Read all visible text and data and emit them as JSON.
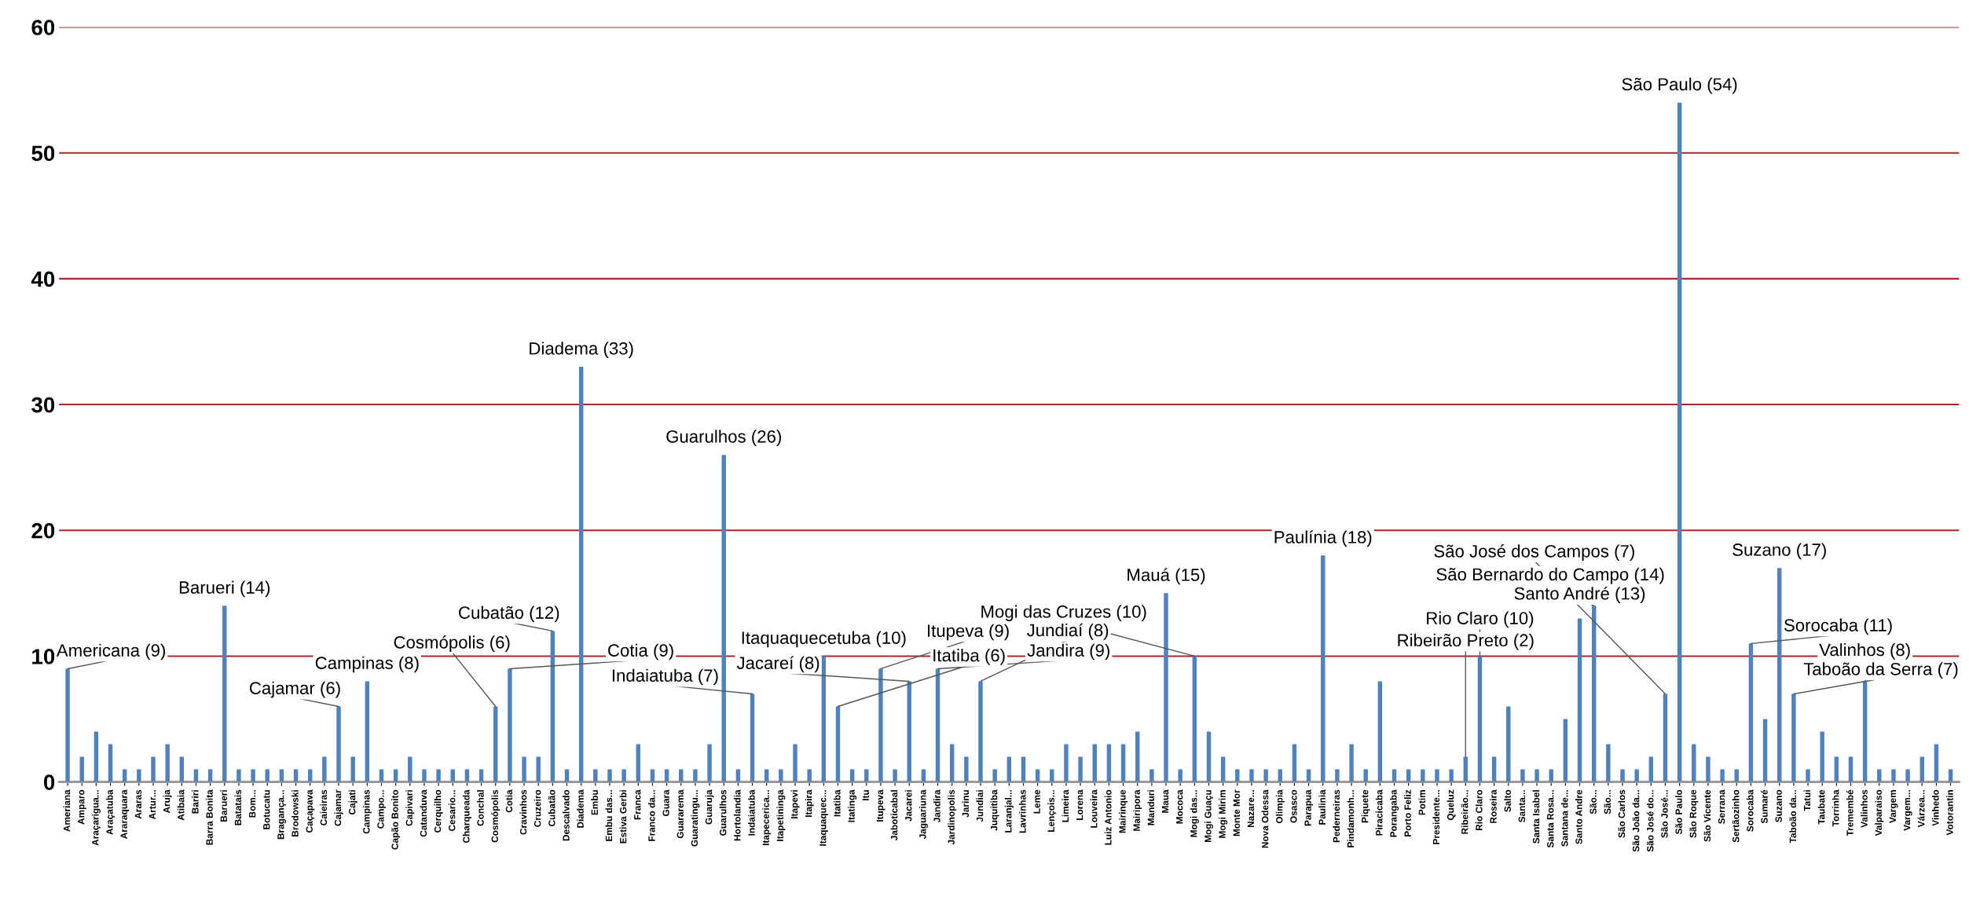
{
  "chart_data": {
    "type": "bar",
    "color": "#4f81bd",
    "ylim": [
      0,
      60
    ],
    "yticks": [
      0,
      10,
      20,
      30,
      40,
      50,
      60
    ],
    "grid": "y",
    "categories": [
      "Ameriana",
      "Amparo",
      "Araçarigua...",
      "Araçatuba",
      "Araraquara",
      "Araras",
      "Artur...",
      "Aruja",
      "Atibaia",
      "Bariri",
      "Barra Bonita",
      "Barueri",
      "Batatais",
      "Bom...",
      "Botucatu",
      "Bragança...",
      "Brodowski",
      "Caçapava",
      "Caieiras",
      "Cajamar",
      "Cajati",
      "Campinas",
      "Campo...",
      "Capão Bonito",
      "Capivari",
      "Catanduva",
      "Cerquilho",
      "Cesario...",
      "Charqueada",
      "Conchal",
      "Cosmópolis",
      "Cotia",
      "Cravinhos",
      "Cruzeiro",
      "Cubatão",
      "Descalvado",
      "Diadema",
      "Embu",
      "Embu das...",
      "Estiva Gerbi",
      "Franca",
      "Franco da...",
      "Guara",
      "Guararema",
      "Guaratingu...",
      "Guaruja",
      "Guarulhos",
      "Hortolandia",
      "Indaiatuba",
      "Itapecerica...",
      "Itapetininga",
      "Itapevi",
      "Itapira",
      "Itaquaquec...",
      "Itatiba",
      "Itatinga",
      "Itu",
      "Itupeva",
      "Jaboticabal",
      "Jacarei",
      "Jaguariuna",
      "Jandira",
      "Jardinopolis",
      "Jarinu",
      "Jundiai",
      "Juquitiba",
      "Laranjal...",
      "Lavrinhas",
      "Leme",
      "Lençois...",
      "Limeira",
      "Lorena",
      "Louveira",
      "Luiz Antonio",
      "Mairinque",
      "Mairipora",
      "Manduri",
      "Maua",
      "Mococa",
      "Mogi das...",
      "Mogi Guaçu",
      "Mogi Mirim",
      "Monte Mor",
      "Nazare...",
      "Nova Odessa",
      "Olimpia",
      "Osasco",
      "Parapua",
      "Paulinia",
      "Pederneiras",
      "Pindamonh...",
      "Piquete",
      "Piracicaba",
      "Porangaba",
      "Porto Feliz",
      "Potim",
      "Presidente...",
      "Queluz",
      "Ribeirão...",
      "Rio Claro",
      "Roseira",
      "Salto",
      "Santa...",
      "Santa Isabel",
      "Santa Rosa...",
      "Santana de...",
      "Santo Andre",
      "São...",
      "São...",
      "São Carlos",
      "São João da...",
      "São José do...",
      "São José...",
      "São Paulo",
      "São Roque",
      "São Vicente",
      "Serrana",
      "Sertãozinho",
      "Sorocaba",
      "Sumaré",
      "Suzano",
      "Taboão da...",
      "Tatui",
      "Taubate",
      "Torrinha",
      "Tremembé",
      "Valinhos",
      "Valparaiso",
      "Vargem",
      "Vargem...",
      "Várzea...",
      "Vinhedo",
      "Votorantin"
    ],
    "values": [
      9,
      2,
      4,
      3,
      1,
      1,
      2,
      3,
      2,
      1,
      1,
      14,
      1,
      1,
      1,
      1,
      1,
      1,
      2,
      6,
      2,
      8,
      1,
      1,
      2,
      1,
      1,
      1,
      1,
      1,
      6,
      9,
      2,
      2,
      12,
      1,
      33,
      1,
      1,
      1,
      3,
      1,
      1,
      1,
      1,
      3,
      26,
      1,
      7,
      1,
      1,
      3,
      1,
      10,
      6,
      1,
      1,
      9,
      1,
      8,
      1,
      9,
      3,
      2,
      8,
      1,
      2,
      2,
      1,
      1,
      3,
      2,
      3,
      3,
      3,
      4,
      1,
      15,
      1,
      10,
      4,
      2,
      1,
      1,
      1,
      1,
      3,
      1,
      18,
      1,
      3,
      1,
      8,
      1,
      1,
      1,
      1,
      1,
      2,
      10,
      2,
      6,
      1,
      1,
      1,
      5,
      13,
      14,
      3,
      1,
      1,
      2,
      7,
      54,
      3,
      2,
      1,
      1,
      11,
      5,
      17,
      7,
      1,
      4,
      2,
      2,
      8,
      1,
      1,
      1,
      2,
      3,
      1
    ],
    "annotations": [
      {
        "text": "Americana (9)",
        "x": "Ameriana",
        "y": 9
      },
      {
        "text": "Barueri (14)",
        "x": "Barueri",
        "y": 14
      },
      {
        "text": "Cajamar (6)",
        "x": "Cajamar",
        "y": 6
      },
      {
        "text": "Campinas (8)",
        "x": "Campinas",
        "y": 8
      },
      {
        "text": "Cosmópolis (6)",
        "x": "Cosmópolis",
        "y": 6
      },
      {
        "text": "Cotia (9)",
        "x": "Cotia",
        "y": 9
      },
      {
        "text": "Cubatão (12)",
        "x": "Cubatão",
        "y": 12
      },
      {
        "text": "Diadema (33)",
        "x": "Diadema",
        "y": 33
      },
      {
        "text": "Guarulhos (26)",
        "x": "Guarulhos",
        "y": 26
      },
      {
        "text": "Indaiatuba (7)",
        "x": "Indaiatuba",
        "y": 7
      },
      {
        "text": "Itaquaquecetuba (10)",
        "x": "Itaquaquec...",
        "y": 10
      },
      {
        "text": "Itatiba (6)",
        "x": "Itatiba",
        "y": 6
      },
      {
        "text": "Itupeva (9)",
        "x": "Itupeva",
        "y": 9
      },
      {
        "text": "Jacareí (8)",
        "x": "Jacarei",
        "y": 8
      },
      {
        "text": "Jandira (9)",
        "x": "Jandira",
        "y": 9
      },
      {
        "text": "Jundiaí (8)",
        "x": "Jundiai",
        "y": 8
      },
      {
        "text": "Mauá (15)",
        "x": "Maua",
        "y": 15
      },
      {
        "text": "Mogi das Cruzes (10)",
        "x": "Mogi das...",
        "y": 10
      },
      {
        "text": "Paulínia (18)",
        "x": "Paulinia",
        "y": 18
      },
      {
        "text": "Ribeirão Preto (2)",
        "x": "Ribeirão...",
        "y": 2
      },
      {
        "text": "Rio Claro (10)",
        "x": "Rio Claro",
        "y": 10
      },
      {
        "text": "Santo André (13)",
        "x": "Santo Andre",
        "y": 13
      },
      {
        "text": "São Bernardo do Campo (14)",
        "x": "São...",
        "y": 14
      },
      {
        "text": "São José dos Campos (7)",
        "x": "São José...",
        "y": 7
      },
      {
        "text": "São Paulo (54)",
        "x": "São Paulo",
        "y": 54
      },
      {
        "text": "Sorocaba (11)",
        "x": "Sorocaba",
        "y": 11
      },
      {
        "text": "Suzano (17)",
        "x": "Suzano",
        "y": 17
      },
      {
        "text": "Taboão da Serra (7)",
        "x": "Taboão da...",
        "y": 7
      },
      {
        "text": "Valinhos (8)",
        "x": "Valinhos",
        "y": 8
      }
    ]
  }
}
